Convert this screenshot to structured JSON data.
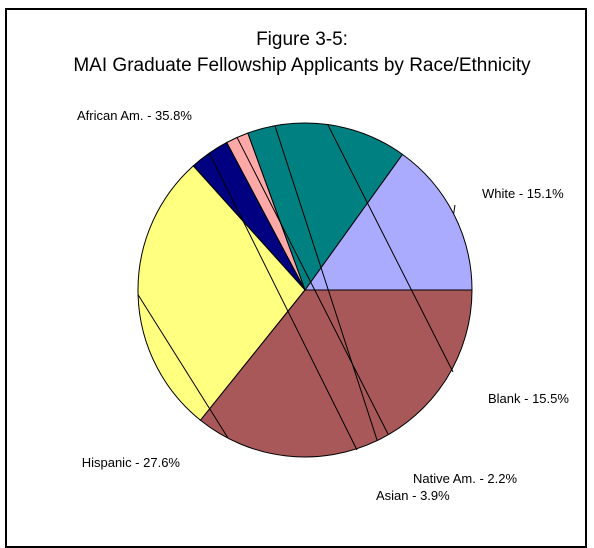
{
  "chart_data": {
    "type": "pie",
    "title": "Figure 3-5:",
    "subtitle": "MAI Graduate Fellowship Applicants by Race/Ethnicity",
    "slices": [
      {
        "label": "White - 15.1%",
        "value": 15.1,
        "color": "#AAAAFF"
      },
      {
        "label": "Blank - 15.5%",
        "value": 15.5,
        "color": "#008080"
      },
      {
        "label": "Native Am. - 2.2%",
        "value": 2.2,
        "color": "#FFA8A8"
      },
      {
        "label": "Asian - 3.9%",
        "value": 3.9,
        "color": "#000080"
      },
      {
        "label": "Hispanic - 27.6%",
        "value": 27.6,
        "color": "#FFFF80"
      },
      {
        "label": "African Am. - 35.8%",
        "value": 35.8,
        "color": "#A85858"
      }
    ],
    "start_direction": "counter-clockwise-from-east",
    "legend": "none"
  }
}
